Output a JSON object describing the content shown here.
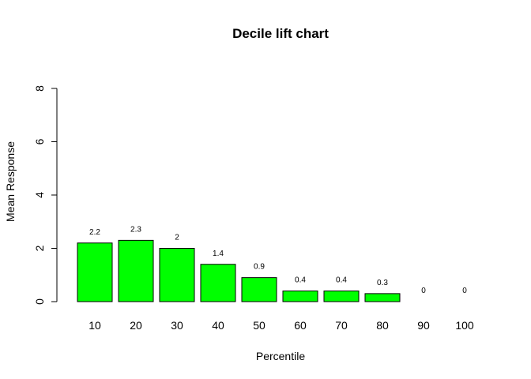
{
  "chart_data": {
    "type": "bar",
    "title": "Decile lift chart",
    "xlabel": "Percentile",
    "ylabel": "Mean Response",
    "categories": [
      "10",
      "20",
      "30",
      "40",
      "50",
      "60",
      "70",
      "80",
      "90",
      "100"
    ],
    "values": [
      2.2,
      2.3,
      2.0,
      1.4,
      0.9,
      0.4,
      0.4,
      0.3,
      0.0,
      0.0
    ],
    "data_labels": [
      "2.2",
      "2.3",
      "2",
      "1.4",
      "0.9",
      "0.4",
      "0.4",
      "0.3",
      "0",
      "0"
    ],
    "ylim": [
      0,
      8
    ],
    "yticks": [
      "0",
      "2",
      "4",
      "6",
      "8"
    ],
    "bar_color": "#00ff00",
    "bar_border": "#000000",
    "grid": false,
    "legend": "none"
  }
}
